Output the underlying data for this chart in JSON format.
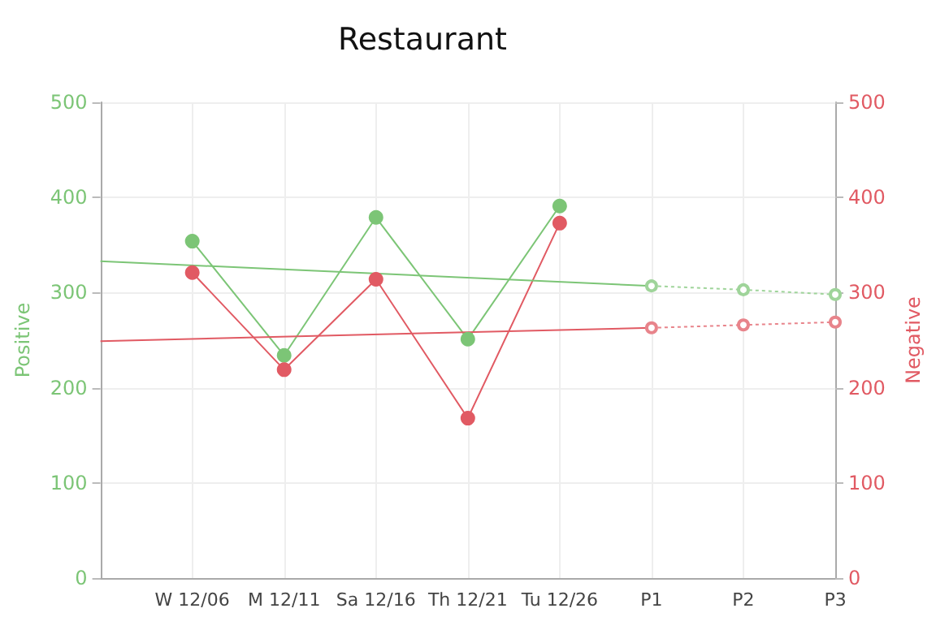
{
  "chart_data": {
    "type": "line",
    "title": "Restaurant",
    "ylabel": "Positive",
    "y2label": "Negative",
    "categories": [
      null,
      "W 12/06",
      "M 12/11",
      "Sa 12/16",
      "Th 12/21",
      "Tu 12/26",
      "P1",
      "P2",
      "P3"
    ],
    "series": [
      {
        "name": null,
        "color": "#7cc576",
        "marker": "circle",
        "line_style": "solid",
        "values": [
          null,
          354,
          234,
          379,
          251,
          391,
          null,
          null,
          null
        ]
      },
      {
        "name": null,
        "color": "#e15a63",
        "axis": "y2",
        "marker": "circle",
        "line_style": "solid",
        "values": [
          null,
          321,
          219,
          314,
          168,
          373,
          null,
          null,
          null
        ]
      },
      {
        "name": null,
        "color": "#7cc576",
        "marker": "none",
        "line_style": "solid",
        "values": [
          333,
          null,
          null,
          null,
          null,
          null,
          307,
          null,
          null
        ]
      },
      {
        "name": null,
        "color": "#e15a63",
        "axis": "y2",
        "marker": "none",
        "line_style": "solid",
        "values": [
          249,
          null,
          null,
          null,
          null,
          null,
          263,
          null,
          null
        ]
      },
      {
        "name": null,
        "color": "#9fd49a",
        "marker": "open_circle",
        "line_style": "dotted",
        "values": [
          null,
          null,
          null,
          null,
          null,
          null,
          307,
          303,
          298
        ]
      },
      {
        "name": null,
        "color": "#e8848b",
        "axis": "y2",
        "marker": "open_circle",
        "line_style": "dotted",
        "values": [
          null,
          null,
          null,
          null,
          null,
          null,
          263,
          266,
          269
        ]
      }
    ],
    "ylim": [
      0,
      500
    ],
    "yticks": [
      0,
      100,
      200,
      300,
      400,
      500
    ],
    "y2lim": [
      0,
      500
    ],
    "y2ticks": [
      0,
      100,
      200,
      300,
      400,
      500
    ],
    "grid": true
  }
}
